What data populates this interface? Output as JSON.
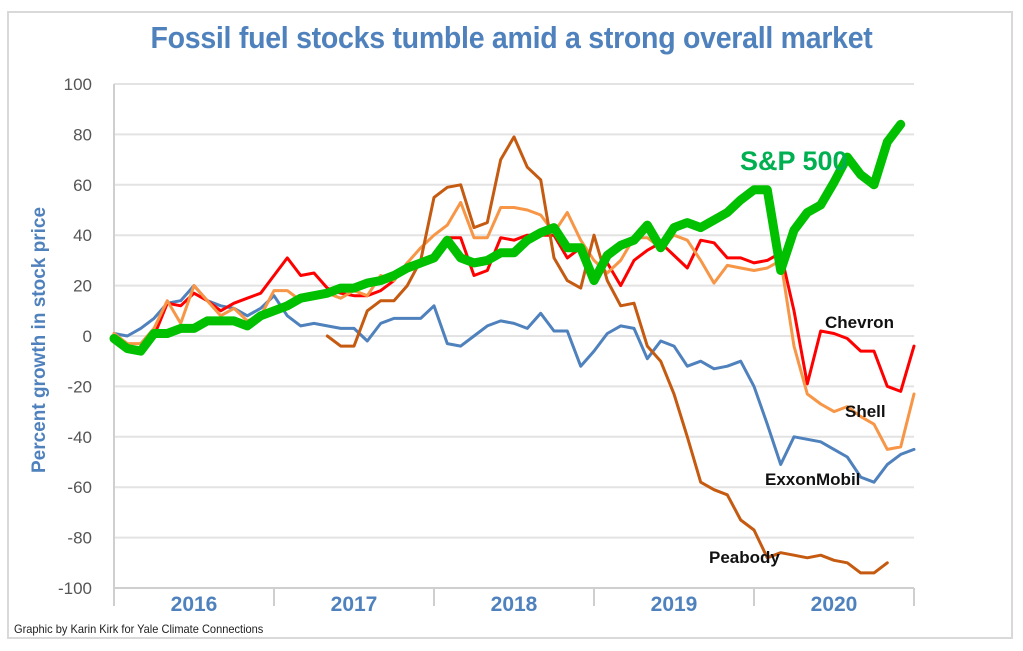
{
  "chart_data": {
    "type": "line",
    "title": "Fossil fuel stocks tumble amid a strong overall market",
    "xlabel": "",
    "ylabel": "Percent growth in stock price",
    "ylim": [
      -100,
      100
    ],
    "yticks": [
      100,
      80,
      60,
      40,
      20,
      0,
      -20,
      -40,
      -60,
      -80,
      -100
    ],
    "ytick_labels": [
      "100",
      "80",
      "60",
      "40",
      "20",
      "0",
      "-20",
      "-40",
      "-60",
      "-80",
      "-100"
    ],
    "x_categories": [
      "2016",
      "2017",
      "2018",
      "2019",
      "2020"
    ],
    "x_unit": "month index from Jan 2016 (0-60)",
    "grid": true,
    "credit": "Graphic by Karin Kirk for Yale Climate Connections",
    "series": [
      {
        "name": "ExxonMobil",
        "color": "#4f81bd",
        "label": "ExxonMobil",
        "start": 0,
        "values": [
          1,
          0,
          3,
          7,
          13,
          14,
          20,
          14,
          12,
          11,
          8,
          11,
          16,
          8,
          4,
          5,
          4,
          3,
          3,
          -2,
          5,
          7,
          7,
          7,
          12,
          -3,
          -4,
          0,
          4,
          6,
          5,
          3,
          9,
          2,
          2,
          -12,
          -6,
          1,
          4,
          3,
          -9,
          -2,
          -4,
          -12,
          -10,
          -13,
          -12,
          -10,
          -20,
          -35,
          -51,
          -40,
          -41,
          -42,
          -45,
          -48,
          -56,
          -58,
          -51,
          -47,
          -45
        ]
      },
      {
        "name": "Chevron",
        "color": "#ff0000",
        "label": "Chevron",
        "start": 0,
        "values": [
          0,
          -4,
          -5,
          0,
          13,
          12,
          17,
          14,
          10,
          13,
          15,
          17,
          24,
          31,
          24,
          25,
          19,
          17,
          16,
          16,
          18,
          22,
          29,
          28,
          31,
          39,
          39,
          24,
          26,
          39,
          38,
          40,
          40,
          40,
          31,
          35,
          24,
          29,
          20,
          30,
          34,
          37,
          32,
          27,
          38,
          37,
          31,
          31,
          29,
          30,
          33,
          10,
          -19,
          2,
          1,
          -1,
          -6,
          -6,
          -20,
          -22,
          -4
        ]
      },
      {
        "name": "Shell",
        "color": "#f79646",
        "label": "Shell",
        "start": 0,
        "values": [
          1,
          -3,
          -3,
          3,
          14,
          5,
          20,
          14,
          8,
          11,
          6,
          8,
          18,
          18,
          14,
          17,
          17,
          15,
          18,
          16,
          24,
          22,
          29,
          35,
          40,
          44,
          53,
          39,
          39,
          51,
          51,
          50,
          48,
          41,
          49,
          38,
          30,
          25,
          30,
          39,
          39,
          35,
          40,
          38,
          30,
          21,
          28,
          27,
          26,
          27,
          30,
          -4,
          -23,
          -27,
          -30,
          -28,
          -32,
          -35,
          -45,
          -44,
          -23
        ]
      },
      {
        "name": "Peabody",
        "color": "#c55a11",
        "label": "Peabody",
        "start": 16,
        "values": [
          0,
          -4,
          -4,
          10,
          14,
          14,
          20,
          30,
          55,
          59,
          60,
          43,
          45,
          70,
          79,
          67,
          62,
          31,
          22,
          19,
          40,
          22,
          12,
          13,
          -4,
          -10,
          -23,
          -40,
          -58,
          -61,
          -63,
          -73,
          -77,
          -88,
          -86,
          -87,
          -88,
          -87,
          -89,
          -90,
          -94,
          -94,
          -90
        ]
      },
      {
        "name": "S&P 500",
        "color": "#00c000",
        "label": "S&P 500",
        "start": 0,
        "values": [
          -1,
          -5,
          -6,
          1,
          1,
          3,
          3,
          6,
          6,
          6,
          4,
          8,
          10,
          12,
          15,
          16,
          17,
          19,
          19,
          21,
          22,
          24,
          27,
          29,
          31,
          38,
          31,
          29,
          30,
          33,
          33,
          38,
          41,
          43,
          35,
          35,
          22,
          32,
          36,
          38,
          44,
          35,
          43,
          45,
          43,
          46,
          49,
          54,
          58,
          58,
          26,
          42,
          49,
          52,
          61,
          71,
          64,
          60,
          77,
          84
        ]
      }
    ]
  }
}
